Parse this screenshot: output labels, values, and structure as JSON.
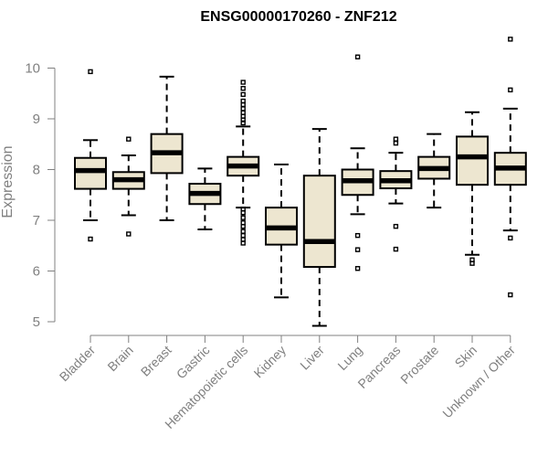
{
  "chart_data": {
    "type": "boxplot",
    "title": "ENSG00000170260 - ZNF212",
    "ylabel": "Expression",
    "xlabel": "",
    "ylim": [
      4.8,
      10.8
    ],
    "yticks": [
      5,
      6,
      7,
      8,
      9,
      10
    ],
    "ytick_labels": [
      "5",
      "6",
      "7",
      "8",
      "9",
      "10"
    ],
    "box_color": "#ede6d0",
    "outline_color": "#000000",
    "axis_color": "#808080",
    "categories": [
      "Bladder",
      "Brain",
      "Breast",
      "Gastric",
      "Hematopoietic cells",
      "Kidney",
      "Liver",
      "Lung",
      "Pancreas",
      "Prostate",
      "Skin",
      "Unknown / Other"
    ],
    "boxes": [
      {
        "category": "Bladder",
        "whisker_low": 7.0,
        "q1": 7.62,
        "median": 7.98,
        "q3": 8.23,
        "whisker_high": 8.58,
        "outliers": [
          9.93,
          6.63
        ]
      },
      {
        "category": "Brain",
        "whisker_low": 7.1,
        "q1": 7.62,
        "median": 7.8,
        "q3": 7.95,
        "whisker_high": 8.28,
        "outliers": [
          8.6,
          6.73
        ]
      },
      {
        "category": "Breast",
        "whisker_low": 7.0,
        "q1": 7.93,
        "median": 8.33,
        "q3": 8.7,
        "whisker_high": 9.83,
        "outliers": []
      },
      {
        "category": "Gastric",
        "whisker_low": 6.82,
        "q1": 7.32,
        "median": 7.53,
        "q3": 7.72,
        "whisker_high": 8.02,
        "outliers": []
      },
      {
        "category": "Hematopoietic cells",
        "whisker_low": 7.25,
        "q1": 7.88,
        "median": 8.07,
        "q3": 8.25,
        "whisker_high": 8.85,
        "outliers": [
          9.72,
          9.6,
          9.48,
          9.35,
          9.28,
          9.2,
          9.12,
          9.05,
          8.98,
          8.92,
          7.22,
          7.15,
          7.05,
          6.95,
          6.88,
          6.78,
          6.7,
          6.62,
          6.55
        ]
      },
      {
        "category": "Kidney",
        "whisker_low": 5.48,
        "q1": 6.52,
        "median": 6.85,
        "q3": 7.25,
        "whisker_high": 8.1,
        "outliers": []
      },
      {
        "category": "Liver",
        "whisker_low": 4.92,
        "q1": 6.08,
        "median": 6.58,
        "q3": 7.88,
        "whisker_high": 8.8,
        "outliers": []
      },
      {
        "category": "Lung",
        "whisker_low": 7.12,
        "q1": 7.5,
        "median": 7.78,
        "q3": 8.0,
        "whisker_high": 8.42,
        "outliers": [
          10.22,
          6.7,
          6.42,
          6.05
        ]
      },
      {
        "category": "Pancreas",
        "whisker_low": 7.33,
        "q1": 7.63,
        "median": 7.78,
        "q3": 7.97,
        "whisker_high": 8.33,
        "outliers": [
          8.6,
          8.52,
          6.88,
          6.43
        ]
      },
      {
        "category": "Prostate",
        "whisker_low": 7.25,
        "q1": 7.82,
        "median": 8.02,
        "q3": 8.25,
        "whisker_high": 8.7,
        "outliers": []
      },
      {
        "category": "Skin",
        "whisker_low": 6.32,
        "q1": 7.7,
        "median": 8.25,
        "q3": 8.65,
        "whisker_high": 9.13,
        "outliers": [
          6.22,
          6.15
        ]
      },
      {
        "category": "Unknown / Other",
        "whisker_low": 6.8,
        "q1": 7.7,
        "median": 8.03,
        "q3": 8.33,
        "whisker_high": 9.2,
        "outliers": [
          10.57,
          9.57,
          6.65,
          5.53
        ]
      }
    ]
  }
}
